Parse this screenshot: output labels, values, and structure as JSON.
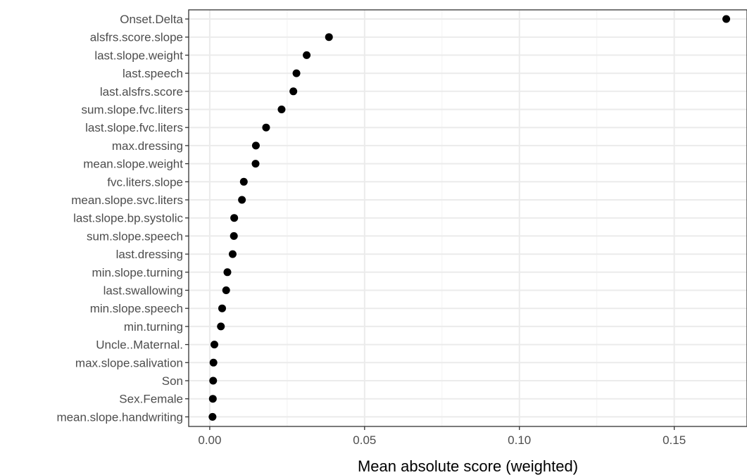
{
  "chart_data": {
    "type": "scatter",
    "title": "",
    "xlabel": "Mean absolute score (weighted)",
    "ylabel": "",
    "xlim": [
      -0.0068,
      0.1735
    ],
    "xticks": [
      0.0,
      0.05,
      0.1,
      0.15
    ],
    "xtick_labels": [
      "0.00",
      "0.05",
      "0.10",
      "0.15"
    ],
    "grid": true,
    "theme": "bw",
    "point_color": "#000000",
    "categories": [
      "Onset.Delta",
      "alsfrs.score.slope",
      "last.slope.weight",
      "last.speech",
      "last.alsfrs.score",
      "sum.slope.fvc.liters",
      "last.slope.fvc.liters",
      "max.dressing",
      "mean.slope.weight",
      "fvc.liters.slope",
      "mean.slope.svc.liters",
      "last.slope.bp.systolic",
      "sum.slope.speech",
      "last.dressing",
      "min.slope.turning",
      "last.swallowing",
      "min.slope.speech",
      "min.turning",
      "Uncle..Maternal.",
      "max.slope.salivation",
      "Son",
      "Sex.Female",
      "mean.slope.handwriting"
    ],
    "values": [
      0.1668,
      0.0385,
      0.0313,
      0.028,
      0.027,
      0.0232,
      0.0182,
      0.0149,
      0.0148,
      0.011,
      0.0104,
      0.0079,
      0.0078,
      0.0074,
      0.0057,
      0.0053,
      0.004,
      0.0036,
      0.0015,
      0.0012,
      0.0011,
      0.001,
      0.0009
    ]
  }
}
